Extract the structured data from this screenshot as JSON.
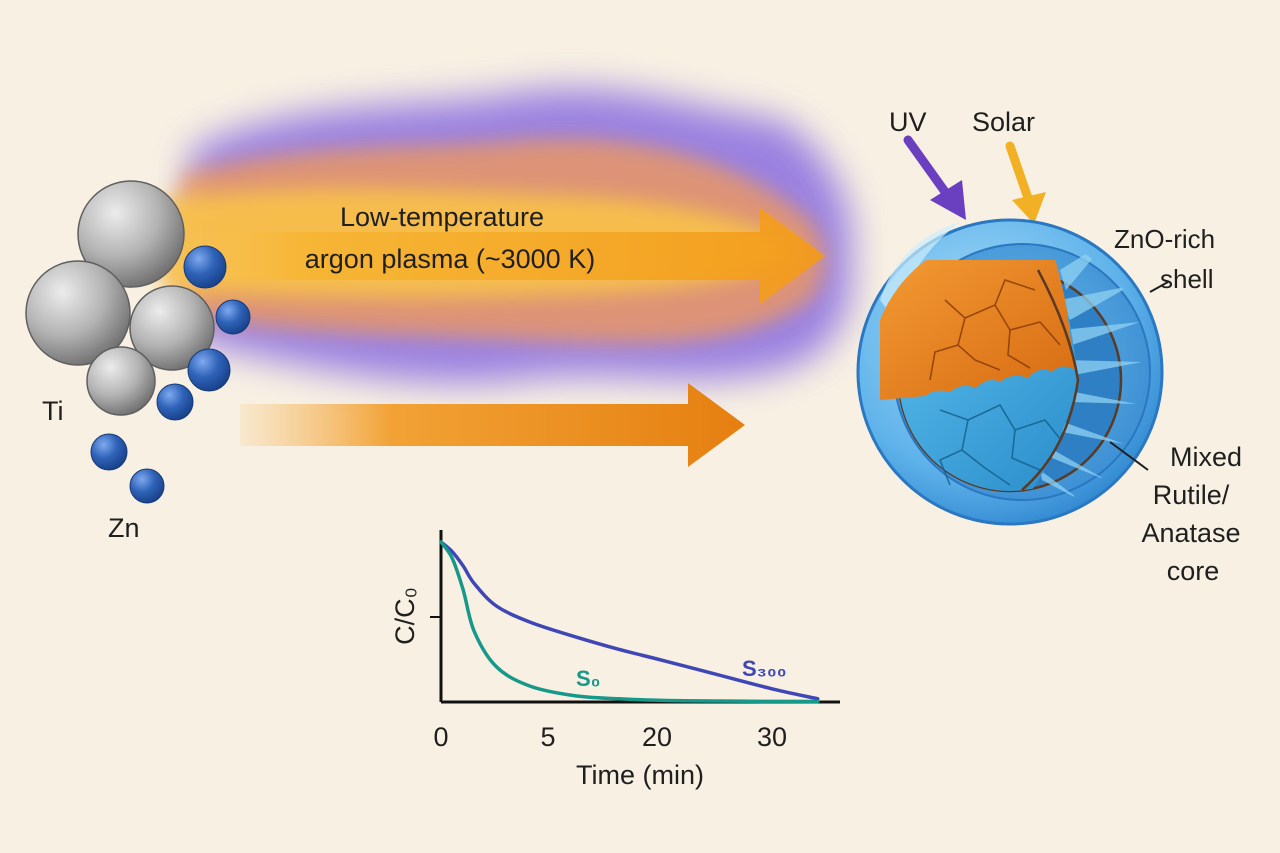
{
  "labels": {
    "plasma_line1": "Low-temperature",
    "plasma_line2": "argon plasma (~3000 K)",
    "ti": "Ti",
    "zn": "Zn",
    "uv": "UV",
    "solar": "Solar",
    "shell_line1": "ZnO-rich",
    "shell_line2": "shell",
    "core_line1": "Mixed",
    "core_line2": "Rutile/",
    "core_line3": "Anatase",
    "core_line4": "core"
  },
  "colors": {
    "background": "#f8f1e3",
    "ti_particle": "#a9a9a9",
    "zn_particle": "#2f63b8",
    "plasma_purple": "#7a5ce0",
    "plasma_orange": "#f59a1c",
    "uv_arrow": "#6a3fc0",
    "solar_arrow": "#f2b124",
    "shell_blue": "#5eb2ea",
    "rutile_orange": "#e8801f",
    "anatase_blue": "#3aa3dc",
    "s0_curve": "#17998a",
    "s300_curve": "#3e47b5"
  },
  "chart_data": {
    "type": "line",
    "title": "",
    "xlabel": "Time (min)",
    "ylabel": "C/C₀",
    "x_ticks": [
      "0",
      "5",
      "20",
      "30"
    ],
    "x_tick_values": [
      0,
      5,
      20,
      30
    ],
    "series": [
      {
        "name": "S₀",
        "x": [
          0,
          1,
          2,
          3,
          5,
          8,
          12,
          16,
          20,
          25,
          30,
          34
        ],
        "y": [
          1.0,
          0.9,
          0.7,
          0.44,
          0.22,
          0.1,
          0.04,
          0.02,
          0.01,
          0.006,
          0.004,
          0.003
        ]
      },
      {
        "name": "S₃₀₀",
        "x": [
          0,
          1,
          2,
          3,
          5,
          8,
          12,
          16,
          20,
          25,
          30,
          34
        ],
        "y": [
          1.0,
          0.94,
          0.85,
          0.74,
          0.6,
          0.5,
          0.41,
          0.33,
          0.26,
          0.17,
          0.08,
          0.02
        ]
      }
    ],
    "xlim": [
      0,
      36
    ],
    "ylim": [
      0,
      1.05
    ]
  }
}
